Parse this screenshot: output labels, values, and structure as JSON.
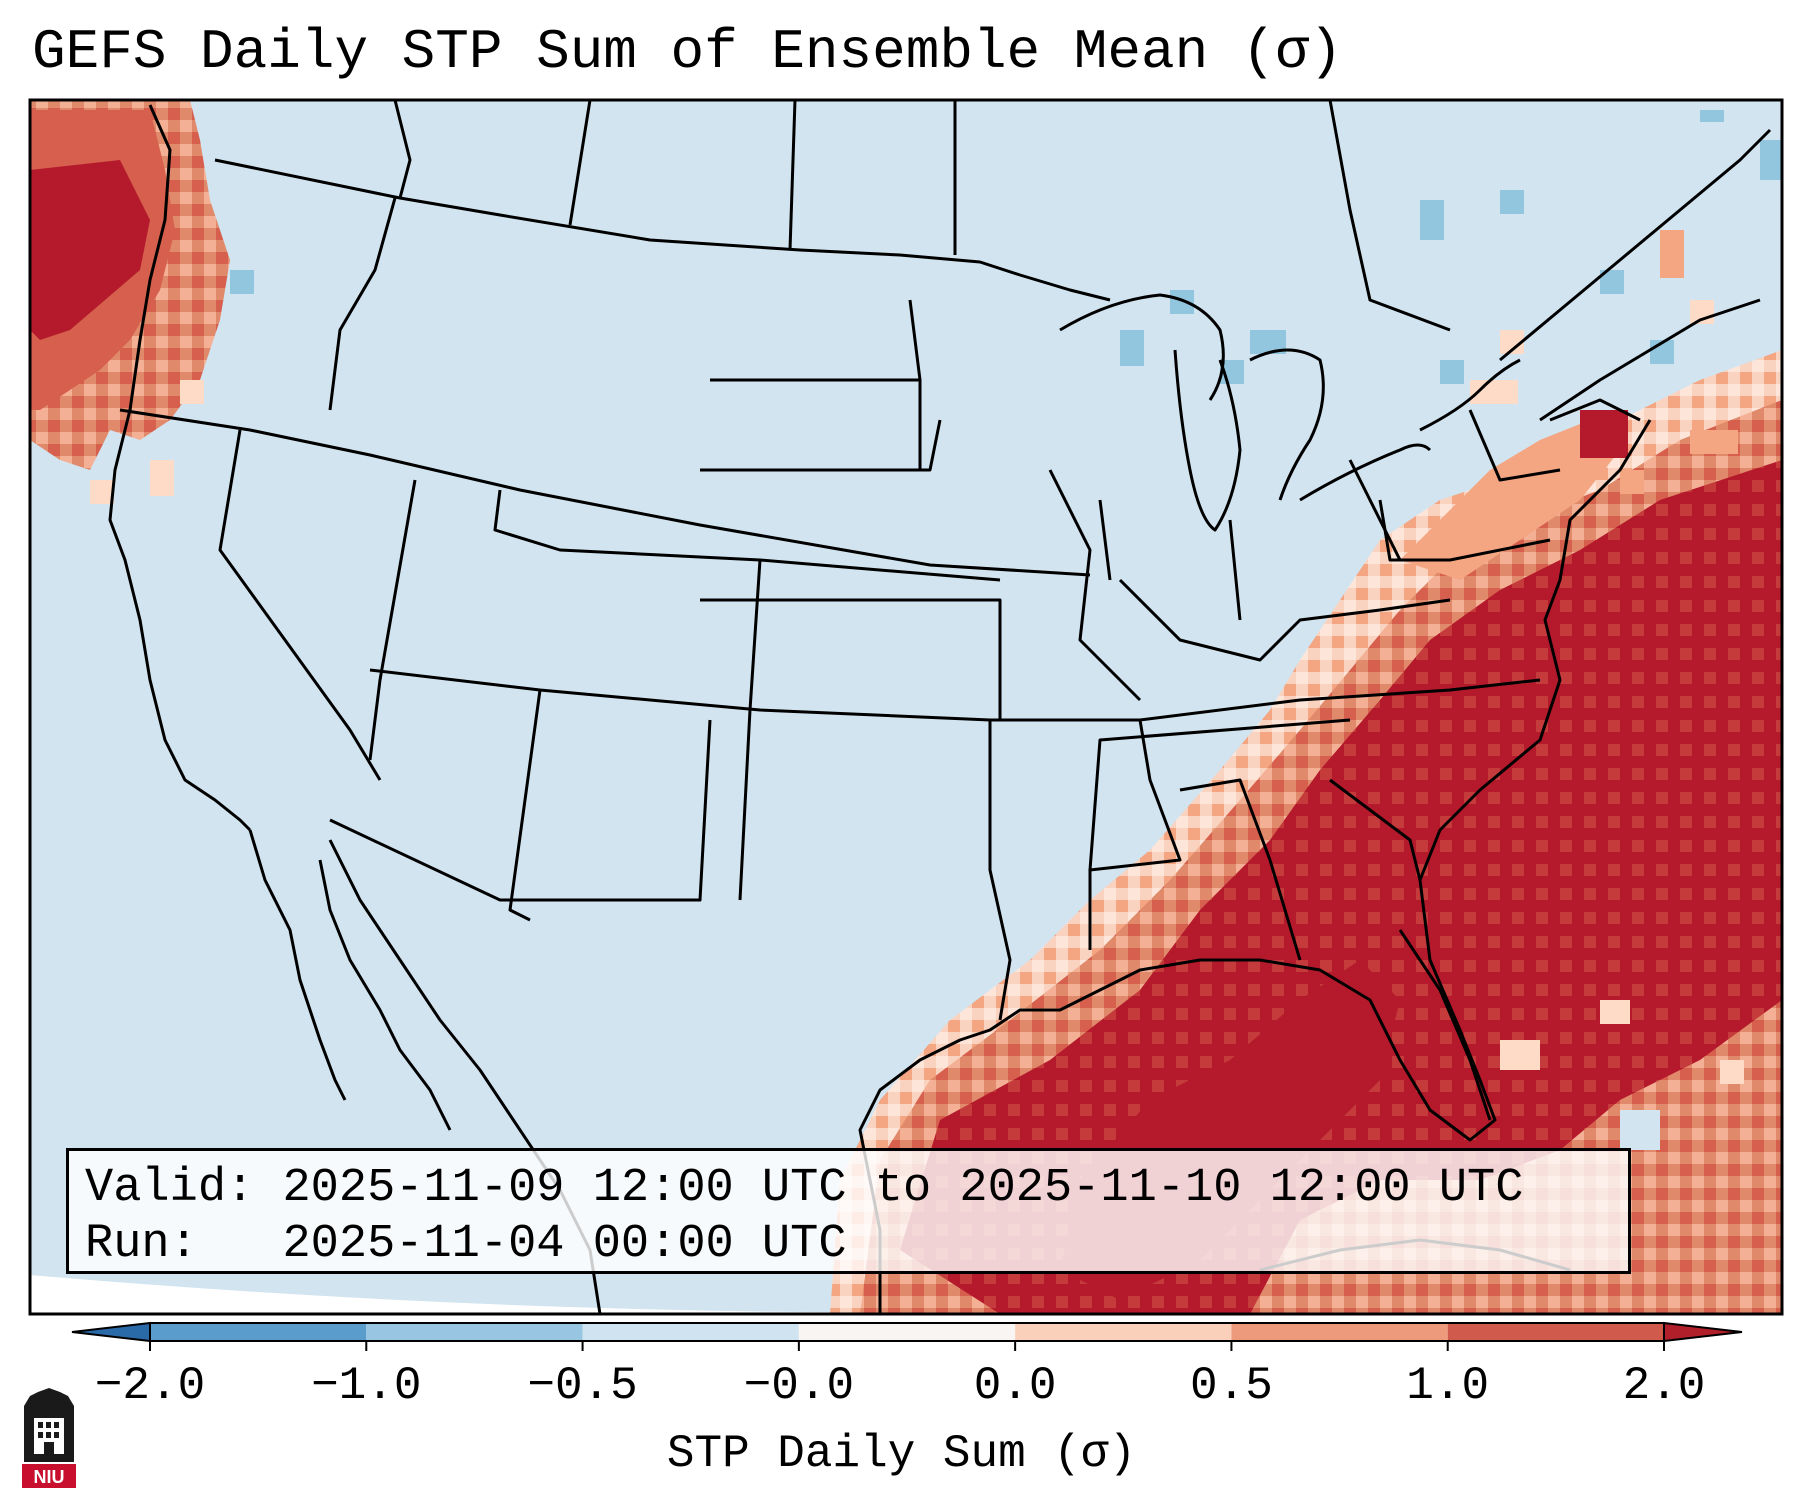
{
  "title": "GEFS Daily STP Sum of Ensemble Mean (σ)",
  "info": {
    "valid_label": "Valid:",
    "valid_value": "2025-11-09 12:00 UTC to 2025-11-10 12:00 UTC",
    "run_label": "Run:",
    "run_value": "2025-11-04 00:00 UTC"
  },
  "colorbar": {
    "label": "STP Daily Sum (σ)",
    "ticks": [
      "−2.0",
      "−1.0",
      "−0.5",
      "−0.0",
      "0.0",
      "0.5",
      "1.0",
      "2.0"
    ],
    "colors": [
      "#3d7fbd",
      "#5a9dcd",
      "#98c5e1",
      "#cfe3f0",
      "#f8f5f3",
      "#fbd0ba",
      "#ec9a7b",
      "#d05a4c",
      "#b01f2a"
    ],
    "under_color": "#2b6aa8",
    "over_color": "#b01f2a"
  },
  "map_colors": {
    "background": "#d2e4f0",
    "strong": "#b41a2b",
    "moderate": "#d6604d",
    "light": "#f4a582",
    "faint": "#fddbc7",
    "negative": "#92c5de",
    "boundary": "#000000"
  },
  "logo": {
    "text": "NIU",
    "icon": "niu-logo-icon"
  }
}
